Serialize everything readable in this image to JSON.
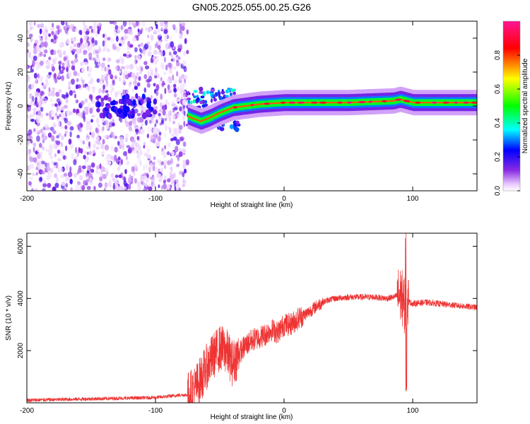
{
  "figure": {
    "title": "GN05.2025.055.00.25.G26"
  },
  "chart_data": [
    {
      "type": "heatmap",
      "xlabel": "Height of straight line (km)",
      "ylabel": "Frequency (Hz)",
      "xlim": [
        -200,
        150
      ],
      "ylim": [
        -50,
        50
      ],
      "xticks": [
        -200,
        -100,
        0,
        100
      ],
      "yticks": [
        -40,
        -20,
        0,
        20,
        40
      ],
      "colorbar": {
        "label": "Normalized spectral amplitude",
        "range": [
          0,
          1
        ],
        "ticks": [
          0.0,
          0.2,
          0.4,
          0.6,
          0.8
        ],
        "tick_labels": [
          "0.0",
          "0.2",
          "0.4",
          "0.6",
          "0.8"
        ],
        "colors": [
          "#ffffff",
          "#8a2be2",
          "#0000ff",
          "#00ffff",
          "#00ff00",
          "#ffff00",
          "#ff0000",
          "#ff1493"
        ]
      },
      "noise_region_km": [
        -200,
        -75
      ],
      "transition_region_km": [
        -75,
        -35
      ],
      "track": [
        {
          "x": -75,
          "f": -6
        },
        {
          "x": -65,
          "f": -9
        },
        {
          "x": -58,
          "f": -7
        },
        {
          "x": -50,
          "f": -4
        },
        {
          "x": -40,
          "f": -1
        },
        {
          "x": -30,
          "f": 0
        },
        {
          "x": -20,
          "f": 1
        },
        {
          "x": 0,
          "f": 2
        },
        {
          "x": 50,
          "f": 2
        },
        {
          "x": 85,
          "f": 3
        },
        {
          "x": 90,
          "f": 4
        },
        {
          "x": 100,
          "f": 2
        },
        {
          "x": 150,
          "f": 2
        }
      ]
    },
    {
      "type": "line",
      "xlabel": "Height of straight line (km)",
      "ylabel": "SNR (10 * v/v)",
      "xlim": [
        -200,
        150
      ],
      "ylim": [
        0,
        6500
      ],
      "xticks": [
        -200,
        -100,
        0,
        100
      ],
      "yticks": [
        2000,
        4000,
        6000
      ],
      "line_color": "#ee3333",
      "series": [
        {
          "name": "SNR",
          "x": [
            -200,
            -150,
            -100,
            -80,
            -75,
            -70,
            -65,
            -60,
            -55,
            -50,
            -45,
            -40,
            -35,
            -30,
            -25,
            -20,
            -15,
            -10,
            -5,
            0,
            5,
            10,
            15,
            20,
            25,
            30,
            35,
            40,
            50,
            60,
            70,
            80,
            85,
            88,
            90,
            92,
            94,
            95,
            96,
            98,
            100,
            110,
            120,
            130,
            140,
            150
          ],
          "values": [
            100,
            150,
            200,
            300,
            300,
            500,
            900,
            1400,
            1800,
            2100,
            2000,
            1500,
            1900,
            2200,
            2400,
            2500,
            2600,
            2800,
            2700,
            3000,
            3000,
            3200,
            3350,
            3500,
            3700,
            3850,
            3950,
            4000,
            4050,
            4050,
            4050,
            4000,
            4050,
            4100,
            4150,
            4000,
            3600,
            3800,
            3900,
            3850,
            3800,
            3850,
            3800,
            3750,
            3700,
            3650
          ]
        }
      ]
    }
  ]
}
